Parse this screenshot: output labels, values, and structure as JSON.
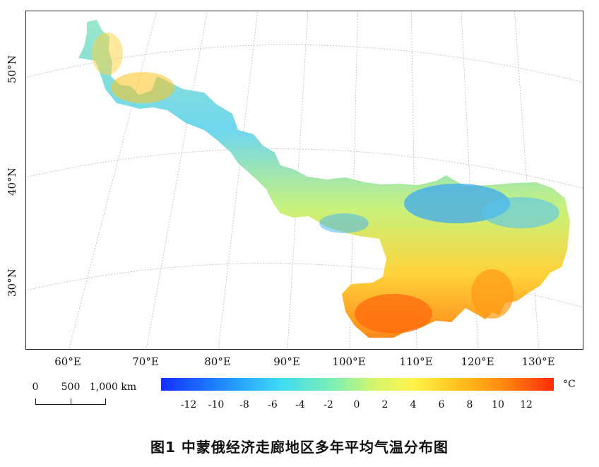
{
  "map": {
    "lat_labels": [
      "50°N",
      "40°N",
      "30°N"
    ],
    "lon_labels": [
      "60°E",
      "70°E",
      "80°E",
      "90°E",
      "100°E",
      "110°E",
      "120°E",
      "130°E"
    ]
  },
  "scale_bar": {
    "labels": [
      "0",
      "500",
      "1,000 km"
    ]
  },
  "legend": {
    "unit": "°C",
    "ticks": [
      "-12",
      "-10",
      "-8",
      "-6",
      "-4",
      "-2",
      "0",
      "2",
      "4",
      "6",
      "8",
      "10",
      "12"
    ],
    "colors": {
      "cold": "#1430ff",
      "cool": "#3dd9f5",
      "mild": "#d9f56a",
      "warm": "#ffc41e",
      "hot": "#ff2a0a"
    }
  },
  "caption": "图1  中蒙俄经济走廊地区多年平均气温分布图"
}
